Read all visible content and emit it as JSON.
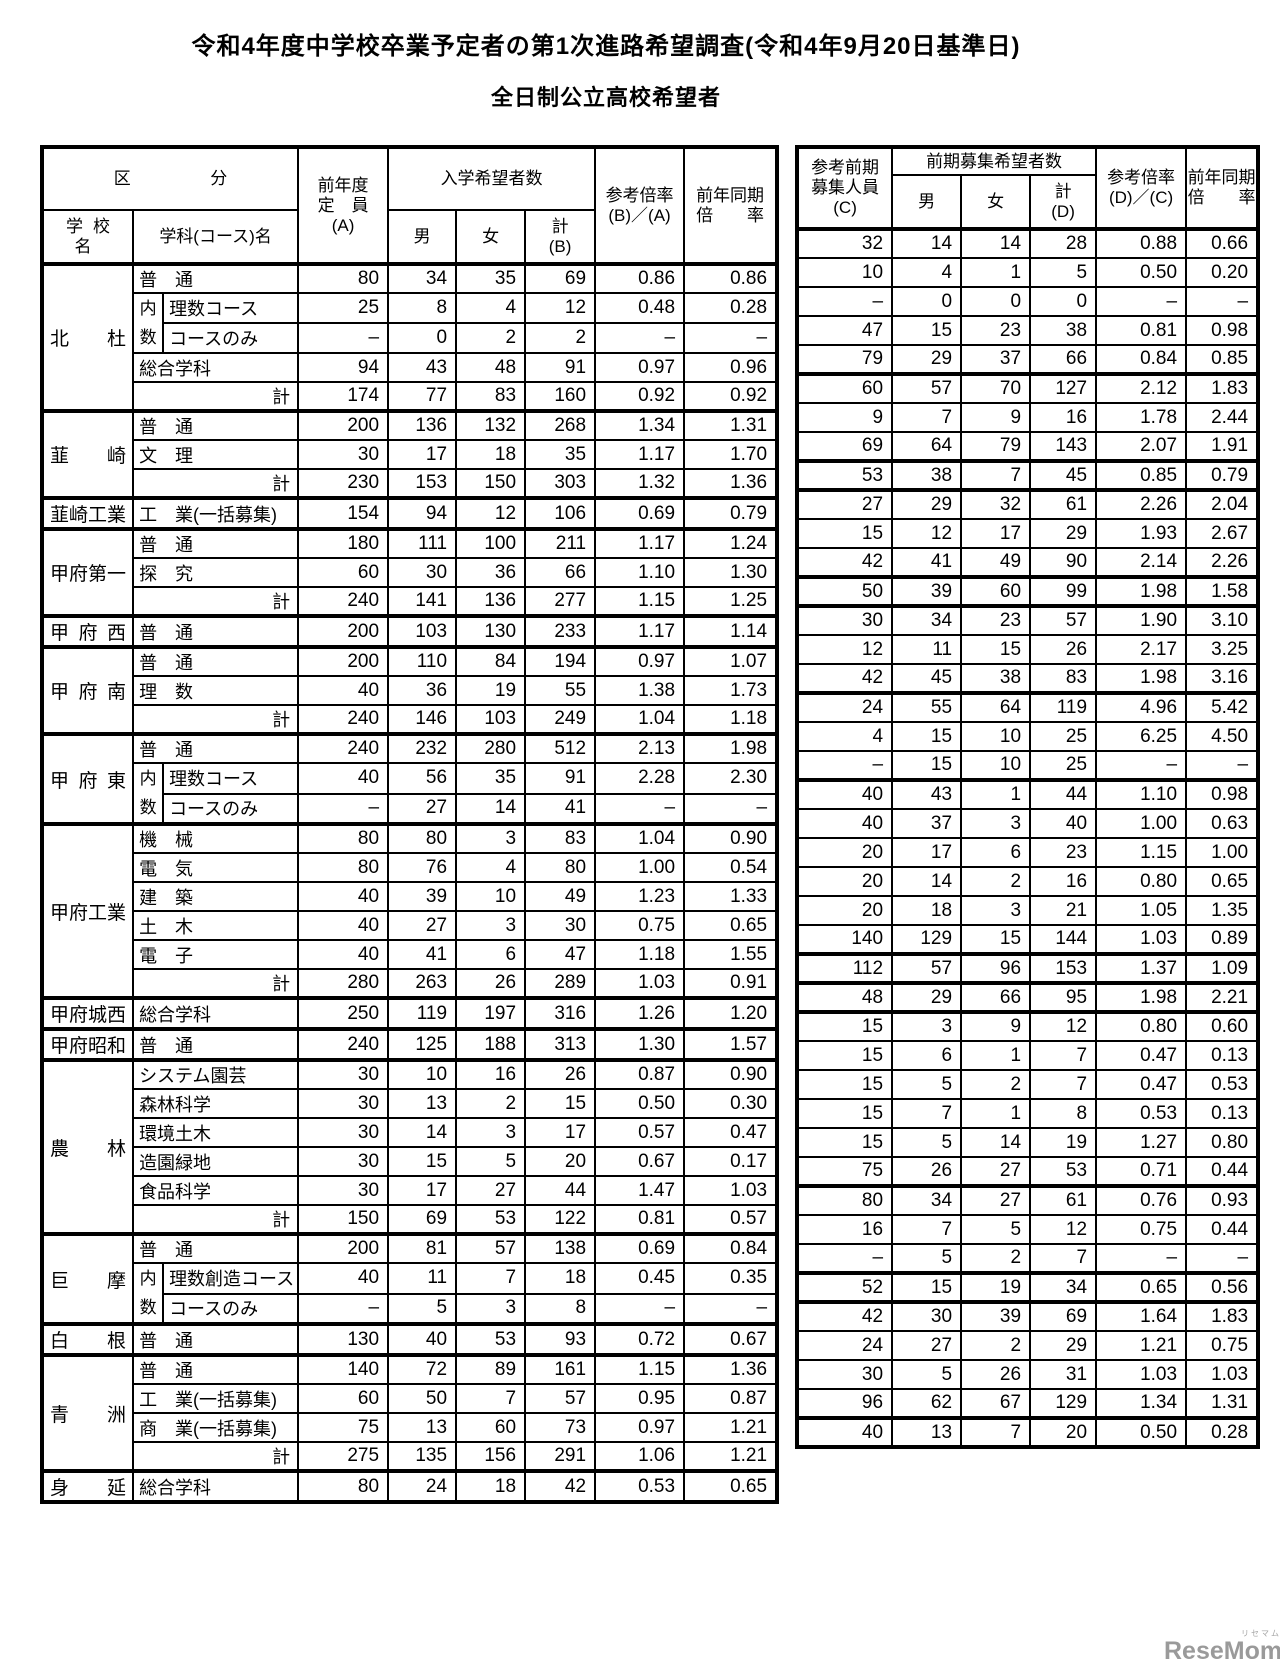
{
  "titles": {
    "line1": "令和4年度中学校卒業予定者の第1次進路希望調査(令和4年9月20日基準日)",
    "line2": "全日制公立高校希望者"
  },
  "left_header": {
    "kubun": [
      "区",
      "分"
    ],
    "school": "学校名",
    "course": "学科(コース)名",
    "capacity": "前年度\n定　員\n(A)",
    "group": "入学希望者数",
    "male": "男",
    "female": "女",
    "total": "計\n(B)",
    "ratio": "参考倍率\n(B)／(A)",
    "prev": "前年同期\n倍　　率"
  },
  "right_header": {
    "capacity": "参考前期\n募集人員\n(C)",
    "group": "前期募集希望者数",
    "male": "男",
    "female": "女",
    "total": "計\n(D)",
    "ratio": "参考倍率\n(D)／(C)",
    "prev": "前年同期\n倍　　率"
  },
  "uchisu_label": "内\n数",
  "total_label": "計",
  "schools": [
    {
      "name": "北杜",
      "rows": [
        {
          "kind": "course",
          "course": "普　通",
          "l": [
            "80",
            "34",
            "35",
            "69",
            "0.86",
            "0.86"
          ],
          "r": [
            "32",
            "14",
            "14",
            "28",
            "0.88",
            "0.66"
          ]
        },
        {
          "kind": "sub1",
          "course": "理数コース",
          "l": [
            "25",
            "8",
            "4",
            "12",
            "0.48",
            "0.28"
          ],
          "r": [
            "10",
            "4",
            "1",
            "5",
            "0.50",
            "0.20"
          ]
        },
        {
          "kind": "sub2",
          "course": "コースのみ",
          "l": [
            "–",
            "0",
            "2",
            "2",
            "–",
            "–"
          ],
          "r": [
            "–",
            "0",
            "0",
            "0",
            "–",
            "–"
          ]
        },
        {
          "kind": "course",
          "course": "総合学科",
          "l": [
            "94",
            "43",
            "48",
            "91",
            "0.97",
            "0.96"
          ],
          "r": [
            "47",
            "15",
            "23",
            "38",
            "0.81",
            "0.98"
          ]
        },
        {
          "kind": "total",
          "l": [
            "174",
            "77",
            "83",
            "160",
            "0.92",
            "0.92"
          ],
          "r": [
            "79",
            "29",
            "37",
            "66",
            "0.84",
            "0.85"
          ]
        }
      ]
    },
    {
      "name": "韮崎",
      "rows": [
        {
          "kind": "course",
          "course": "普　通",
          "l": [
            "200",
            "136",
            "132",
            "268",
            "1.34",
            "1.31"
          ],
          "r": [
            "60",
            "57",
            "70",
            "127",
            "2.12",
            "1.83"
          ]
        },
        {
          "kind": "course",
          "course": "文　理",
          "l": [
            "30",
            "17",
            "18",
            "35",
            "1.17",
            "1.70"
          ],
          "r": [
            "9",
            "7",
            "9",
            "16",
            "1.78",
            "2.44"
          ]
        },
        {
          "kind": "total",
          "l": [
            "230",
            "153",
            "150",
            "303",
            "1.32",
            "1.36"
          ],
          "r": [
            "69",
            "64",
            "79",
            "143",
            "2.07",
            "1.91"
          ]
        }
      ]
    },
    {
      "name": "韮崎工業",
      "rows": [
        {
          "kind": "course",
          "course": "工　業(一括募集)",
          "l": [
            "154",
            "94",
            "12",
            "106",
            "0.69",
            "0.79"
          ],
          "r": [
            "53",
            "38",
            "7",
            "45",
            "0.85",
            "0.79"
          ]
        }
      ]
    },
    {
      "name": "甲府第一",
      "rows": [
        {
          "kind": "course",
          "course": "普　通",
          "l": [
            "180",
            "111",
            "100",
            "211",
            "1.17",
            "1.24"
          ],
          "r": [
            "27",
            "29",
            "32",
            "61",
            "2.26",
            "2.04"
          ]
        },
        {
          "kind": "course",
          "course": "探　究",
          "l": [
            "60",
            "30",
            "36",
            "66",
            "1.10",
            "1.30"
          ],
          "r": [
            "15",
            "12",
            "17",
            "29",
            "1.93",
            "2.67"
          ]
        },
        {
          "kind": "total",
          "l": [
            "240",
            "141",
            "136",
            "277",
            "1.15",
            "1.25"
          ],
          "r": [
            "42",
            "41",
            "49",
            "90",
            "2.14",
            "2.26"
          ]
        }
      ]
    },
    {
      "name": "甲府西",
      "rows": [
        {
          "kind": "course",
          "course": "普　通",
          "l": [
            "200",
            "103",
            "130",
            "233",
            "1.17",
            "1.14"
          ],
          "r": [
            "50",
            "39",
            "60",
            "99",
            "1.98",
            "1.58"
          ]
        }
      ]
    },
    {
      "name": "甲府南",
      "rows": [
        {
          "kind": "course",
          "course": "普　通",
          "l": [
            "200",
            "110",
            "84",
            "194",
            "0.97",
            "1.07"
          ],
          "r": [
            "30",
            "34",
            "23",
            "57",
            "1.90",
            "3.10"
          ]
        },
        {
          "kind": "course",
          "course": "理　数",
          "l": [
            "40",
            "36",
            "19",
            "55",
            "1.38",
            "1.73"
          ],
          "r": [
            "12",
            "11",
            "15",
            "26",
            "2.17",
            "3.25"
          ]
        },
        {
          "kind": "total",
          "l": [
            "240",
            "146",
            "103",
            "249",
            "1.04",
            "1.18"
          ],
          "r": [
            "42",
            "45",
            "38",
            "83",
            "1.98",
            "3.16"
          ]
        }
      ]
    },
    {
      "name": "甲府東",
      "rows": [
        {
          "kind": "course",
          "course": "普　通",
          "l": [
            "240",
            "232",
            "280",
            "512",
            "2.13",
            "1.98"
          ],
          "r": [
            "24",
            "55",
            "64",
            "119",
            "4.96",
            "5.42"
          ]
        },
        {
          "kind": "sub1",
          "course": "理数コース",
          "l": [
            "40",
            "56",
            "35",
            "91",
            "2.28",
            "2.30"
          ],
          "r": [
            "4",
            "15",
            "10",
            "25",
            "6.25",
            "4.50"
          ]
        },
        {
          "kind": "sub2",
          "course": "コースのみ",
          "l": [
            "–",
            "27",
            "14",
            "41",
            "–",
            "–"
          ],
          "r": [
            "–",
            "15",
            "10",
            "25",
            "–",
            "–"
          ]
        }
      ]
    },
    {
      "name": "甲府工業",
      "rows": [
        {
          "kind": "course",
          "course": "機　械",
          "l": [
            "80",
            "80",
            "3",
            "83",
            "1.04",
            "0.90"
          ],
          "r": [
            "40",
            "43",
            "1",
            "44",
            "1.10",
            "0.98"
          ]
        },
        {
          "kind": "course",
          "course": "電　気",
          "l": [
            "80",
            "76",
            "4",
            "80",
            "1.00",
            "0.54"
          ],
          "r": [
            "40",
            "37",
            "3",
            "40",
            "1.00",
            "0.63"
          ]
        },
        {
          "kind": "course",
          "course": "建　築",
          "l": [
            "40",
            "39",
            "10",
            "49",
            "1.23",
            "1.33"
          ],
          "r": [
            "20",
            "17",
            "6",
            "23",
            "1.15",
            "1.00"
          ]
        },
        {
          "kind": "course",
          "course": "土　木",
          "l": [
            "40",
            "27",
            "3",
            "30",
            "0.75",
            "0.65"
          ],
          "r": [
            "20",
            "14",
            "2",
            "16",
            "0.80",
            "0.65"
          ]
        },
        {
          "kind": "course",
          "course": "電　子",
          "l": [
            "40",
            "41",
            "6",
            "47",
            "1.18",
            "1.55"
          ],
          "r": [
            "20",
            "18",
            "3",
            "21",
            "1.05",
            "1.35"
          ]
        },
        {
          "kind": "total",
          "l": [
            "280",
            "263",
            "26",
            "289",
            "1.03",
            "0.91"
          ],
          "r": [
            "140",
            "129",
            "15",
            "144",
            "1.03",
            "0.89"
          ]
        }
      ]
    },
    {
      "name": "甲府城西",
      "rows": [
        {
          "kind": "course",
          "course": "総合学科",
          "l": [
            "250",
            "119",
            "197",
            "316",
            "1.26",
            "1.20"
          ],
          "r": [
            "112",
            "57",
            "96",
            "153",
            "1.37",
            "1.09"
          ]
        }
      ]
    },
    {
      "name": "甲府昭和",
      "rows": [
        {
          "kind": "course",
          "course": "普　通",
          "l": [
            "240",
            "125",
            "188",
            "313",
            "1.30",
            "1.57"
          ],
          "r": [
            "48",
            "29",
            "66",
            "95",
            "1.98",
            "2.21"
          ]
        }
      ]
    },
    {
      "name": "農林",
      "rows": [
        {
          "kind": "course",
          "course": "システム園芸",
          "l": [
            "30",
            "10",
            "16",
            "26",
            "0.87",
            "0.90"
          ],
          "r": [
            "15",
            "3",
            "9",
            "12",
            "0.80",
            "0.60"
          ]
        },
        {
          "kind": "course",
          "course": "森林科学",
          "l": [
            "30",
            "13",
            "2",
            "15",
            "0.50",
            "0.30"
          ],
          "r": [
            "15",
            "6",
            "1",
            "7",
            "0.47",
            "0.13"
          ]
        },
        {
          "kind": "course",
          "course": "環境土木",
          "l": [
            "30",
            "14",
            "3",
            "17",
            "0.57",
            "0.47"
          ],
          "r": [
            "15",
            "5",
            "2",
            "7",
            "0.47",
            "0.53"
          ]
        },
        {
          "kind": "course",
          "course": "造園緑地",
          "l": [
            "30",
            "15",
            "5",
            "20",
            "0.67",
            "0.17"
          ],
          "r": [
            "15",
            "7",
            "1",
            "8",
            "0.53",
            "0.13"
          ]
        },
        {
          "kind": "course",
          "course": "食品科学",
          "l": [
            "30",
            "17",
            "27",
            "44",
            "1.47",
            "1.03"
          ],
          "r": [
            "15",
            "5",
            "14",
            "19",
            "1.27",
            "0.80"
          ]
        },
        {
          "kind": "total",
          "l": [
            "150",
            "69",
            "53",
            "122",
            "0.81",
            "0.57"
          ],
          "r": [
            "75",
            "26",
            "27",
            "53",
            "0.71",
            "0.44"
          ]
        }
      ]
    },
    {
      "name": "巨摩",
      "rows": [
        {
          "kind": "course",
          "course": "普　通",
          "l": [
            "200",
            "81",
            "57",
            "138",
            "0.69",
            "0.84"
          ],
          "r": [
            "80",
            "34",
            "27",
            "61",
            "0.76",
            "0.93"
          ]
        },
        {
          "kind": "sub1",
          "course": "理数創造コース",
          "l": [
            "40",
            "11",
            "7",
            "18",
            "0.45",
            "0.35"
          ],
          "r": [
            "16",
            "7",
            "5",
            "12",
            "0.75",
            "0.44"
          ]
        },
        {
          "kind": "sub2",
          "course": "コースのみ",
          "l": [
            "–",
            "5",
            "3",
            "8",
            "–",
            "–"
          ],
          "r": [
            "–",
            "5",
            "2",
            "7",
            "–",
            "–"
          ]
        }
      ]
    },
    {
      "name": "白根",
      "rows": [
        {
          "kind": "course",
          "course": "普　通",
          "l": [
            "130",
            "40",
            "53",
            "93",
            "0.72",
            "0.67"
          ],
          "r": [
            "52",
            "15",
            "19",
            "34",
            "0.65",
            "0.56"
          ]
        }
      ]
    },
    {
      "name": "青洲",
      "rows": [
        {
          "kind": "course",
          "course": "普　通",
          "l": [
            "140",
            "72",
            "89",
            "161",
            "1.15",
            "1.36"
          ],
          "r": [
            "42",
            "30",
            "39",
            "69",
            "1.64",
            "1.83"
          ]
        },
        {
          "kind": "course",
          "course": "工　業(一括募集)",
          "l": [
            "60",
            "50",
            "7",
            "57",
            "0.95",
            "0.87"
          ],
          "r": [
            "24",
            "27",
            "2",
            "29",
            "1.21",
            "0.75"
          ]
        },
        {
          "kind": "course",
          "course": "商　業(一括募集)",
          "l": [
            "75",
            "13",
            "60",
            "73",
            "0.97",
            "1.21"
          ],
          "r": [
            "30",
            "5",
            "26",
            "31",
            "1.03",
            "1.03"
          ]
        },
        {
          "kind": "total",
          "l": [
            "275",
            "135",
            "156",
            "291",
            "1.06",
            "1.21"
          ],
          "r": [
            "96",
            "62",
            "67",
            "129",
            "1.34",
            "1.31"
          ]
        }
      ]
    },
    {
      "name": "身延",
      "rows": [
        {
          "kind": "course",
          "course": "総合学科",
          "l": [
            "80",
            "24",
            "18",
            "42",
            "0.53",
            "0.65"
          ],
          "r": [
            "40",
            "13",
            "7",
            "20",
            "0.50",
            "0.28"
          ]
        }
      ]
    }
  ],
  "logo": {
    "ruby": "リセマム",
    "text": "ReseMom."
  }
}
